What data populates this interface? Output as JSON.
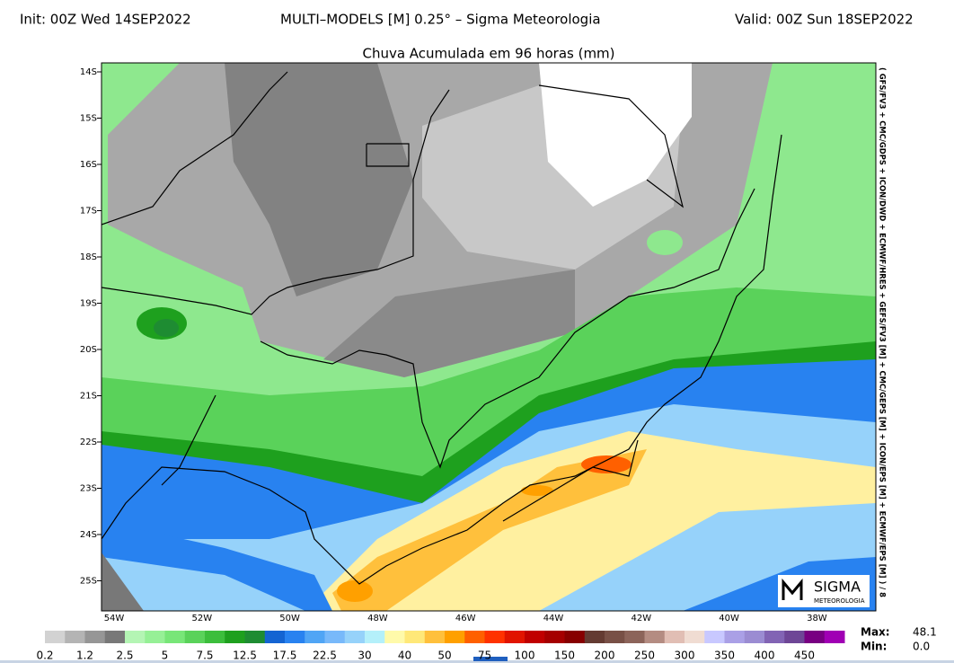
{
  "header": {
    "init": "Init: 00Z Wed 14SEP2022",
    "title": "MULTI–MODELS [M] 0.25° – Sigma Meteorologia",
    "valid": "Valid: 00Z Sun 18SEP2022"
  },
  "subtitle": "Chuva Acumulada em 96 horas (mm)",
  "lat_labels": [
    "14S",
    "15S",
    "16S",
    "17S",
    "18S",
    "19S",
    "20S",
    "21S",
    "22S",
    "23S",
    "24S",
    "25S"
  ],
  "lon_labels": [
    "54W",
    "52W",
    "50W",
    "48W",
    "46W",
    "44W",
    "42W",
    "40W",
    "38W"
  ],
  "model_note": "( GFS/FV3 + CMC/GDPS + ICON/DWD + ECMWF/HRES + GEFS/FV3 [M] + CMC/GEPS [M] + ICON/EPS [M] + ECMWF/EPS [M] ) / 8",
  "colorbar": {
    "labels": [
      "0.2",
      "1.2",
      "2.5",
      "5",
      "7.5",
      "12.5",
      "17.5",
      "22.5",
      "30",
      "40",
      "50",
      "75",
      "100",
      "150",
      "200",
      "250",
      "300",
      "350",
      "400",
      "450"
    ],
    "colors": [
      "#d2d2d2",
      "#b4b4b4",
      "#969696",
      "#787878",
      "#b4f5b4",
      "#96f096",
      "#78e678",
      "#5ad25a",
      "#3cbe3c",
      "#1ea01e",
      "#1e8c32",
      "#1464d2",
      "#2882f0",
      "#50a5f5",
      "#78b9fa",
      "#96d2fa",
      "#b4f0fa",
      "#fffaaa",
      "#ffe878",
      "#ffc03c",
      "#ffa000",
      "#ff6000",
      "#ff3200",
      "#e11400",
      "#c00000",
      "#a50000",
      "#870000",
      "#643b32",
      "#785046",
      "#8c645a",
      "#b48c82",
      "#e1beb4",
      "#f0dcd2",
      "#c8c8ff",
      "#aaa0e6",
      "#9b8cd2",
      "#8264b4",
      "#6e4696",
      "#780082",
      "#a000b4"
    ]
  },
  "stats": {
    "max_label": "Max:",
    "max": "48.1",
    "min_label": "Min:",
    "min": "0.0"
  },
  "logo": {
    "name": "SIGMA",
    "sub": "METEOROLOGIA"
  }
}
